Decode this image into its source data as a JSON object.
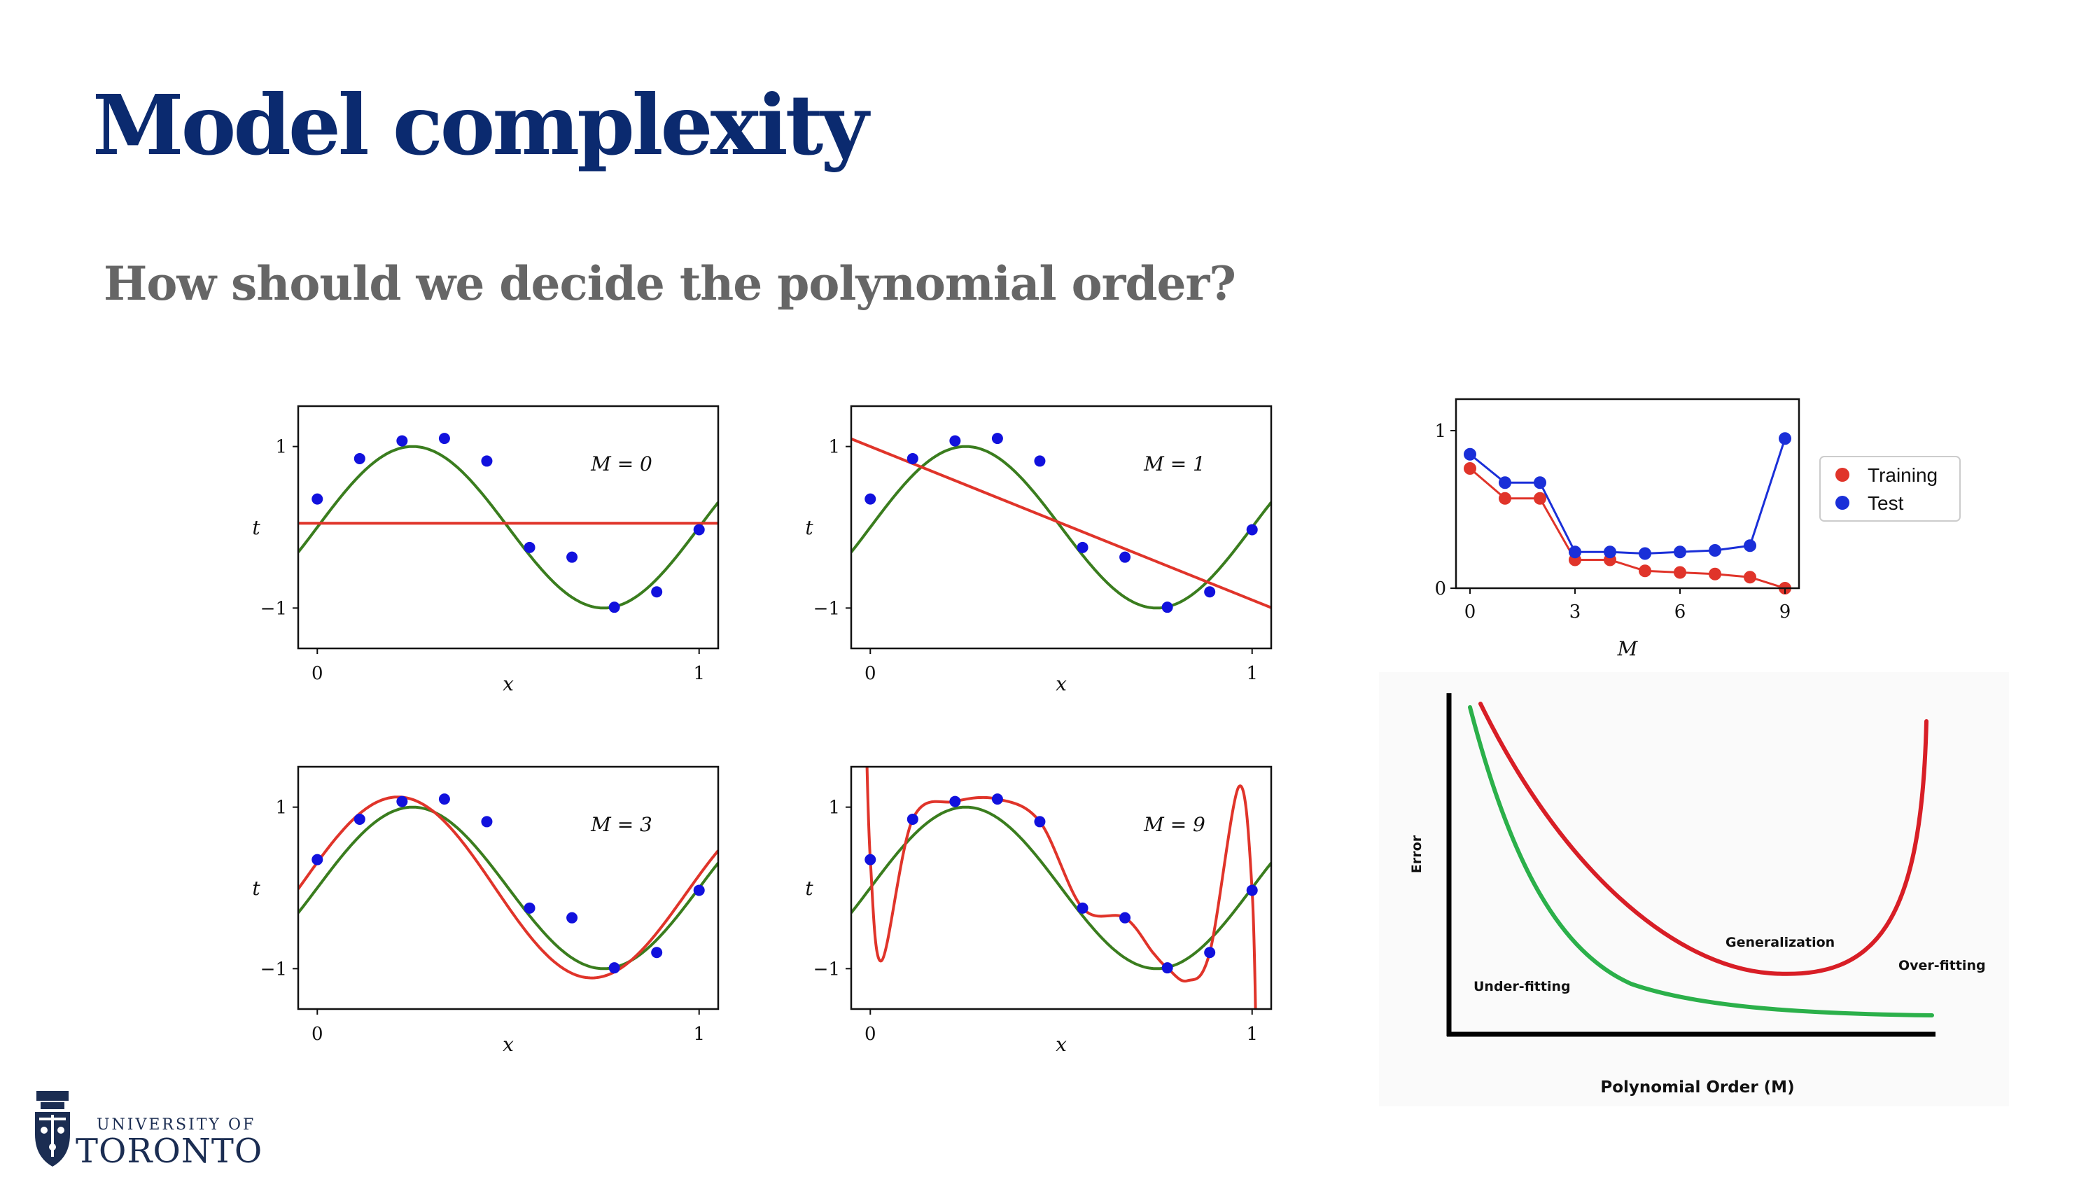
{
  "slide": {
    "title": "Model complexity",
    "subtitle": "How should we decide the polynomial order?"
  },
  "logo": {
    "line1": "UNIVERSITY OF",
    "line2": "TORONTO",
    "icon": "crest-icon"
  },
  "colors": {
    "title": "#0b2a6f",
    "true_curve": "#3a7d1e",
    "fit_curve": "#e0342a",
    "points": "#1111dd",
    "train": "#e0342a",
    "test": "#1a2fd8",
    "diag_green": "#2bb04a",
    "diag_red": "#d81e26"
  },
  "chart_data": [
    {
      "type": "line",
      "label": "M = 0",
      "xlabel": "x",
      "ylabel": "t",
      "xticks": [
        "0",
        "1"
      ],
      "yticks": [
        "1",
        "−1"
      ],
      "points_x": [
        0,
        0.111,
        0.222,
        0.333,
        0.444,
        0.556,
        0.667,
        0.778,
        0.889,
        1.0
      ],
      "points_y": [
        0.35,
        0.85,
        1.07,
        1.1,
        0.82,
        -0.25,
        -0.37,
        -0.99,
        -0.8,
        -0.03
      ],
      "fit": {
        "kind": "constant",
        "value": 0.05
      }
    },
    {
      "type": "line",
      "label": "M = 1",
      "xlabel": "x",
      "ylabel": "t",
      "xticks": [
        "0",
        "1"
      ],
      "yticks": [
        "1",
        "−1"
      ],
      "points_x": [
        0,
        0.111,
        0.222,
        0.333,
        0.444,
        0.556,
        0.667,
        0.778,
        0.889,
        1.0
      ],
      "points_y": [
        0.35,
        0.85,
        1.07,
        1.1,
        0.82,
        -0.25,
        -0.37,
        -0.99,
        -0.8,
        -0.03
      ],
      "fit": {
        "kind": "linear",
        "y0": 1.0,
        "y1": -0.9
      }
    },
    {
      "type": "line",
      "label": "M = 3",
      "xlabel": "x",
      "ylabel": "t",
      "xticks": [
        "0",
        "1"
      ],
      "yticks": [
        "1",
        "−1"
      ],
      "points_x": [
        0,
        0.111,
        0.222,
        0.333,
        0.444,
        0.556,
        0.667,
        0.778,
        0.889,
        1.0
      ],
      "points_y": [
        0.35,
        0.85,
        1.07,
        1.1,
        0.82,
        -0.25,
        -0.37,
        -0.99,
        -0.8,
        -0.03
      ],
      "fit": {
        "kind": "cubic_like"
      }
    },
    {
      "type": "line",
      "label": "M = 9",
      "xlabel": "x",
      "ylabel": "t",
      "xticks": [
        "0",
        "1"
      ],
      "yticks": [
        "1",
        "−1"
      ],
      "points_x": [
        0,
        0.111,
        0.222,
        0.333,
        0.444,
        0.556,
        0.667,
        0.778,
        0.889,
        1.0
      ],
      "points_y": [
        0.35,
        0.85,
        1.07,
        1.1,
        0.82,
        -0.25,
        -0.37,
        -0.99,
        -0.8,
        -0.03
      ],
      "fit": {
        "kind": "interpolating"
      }
    },
    {
      "type": "line",
      "xlabel": "M",
      "xticks": [
        "0",
        "3",
        "6",
        "9"
      ],
      "yticks": [
        "0",
        "1"
      ],
      "x": [
        0,
        1,
        2,
        3,
        4,
        5,
        6,
        7,
        8,
        9
      ],
      "series": [
        {
          "name": "Training",
          "values": [
            0.76,
            0.57,
            0.57,
            0.18,
            0.18,
            0.11,
            0.1,
            0.09,
            0.07,
            0.0
          ]
        },
        {
          "name": "Test",
          "values": [
            0.85,
            0.67,
            0.67,
            0.23,
            0.23,
            0.22,
            0.23,
            0.24,
            0.27,
            0.95
          ]
        }
      ],
      "xlim": [
        0,
        9
      ],
      "ylim": [
        0,
        1
      ]
    },
    {
      "type": "line",
      "xlabel": "Polynomial Order (M)",
      "ylabel": "Error",
      "annotations": [
        "Under-fitting",
        "Generalization",
        "Over-fitting"
      ]
    }
  ]
}
